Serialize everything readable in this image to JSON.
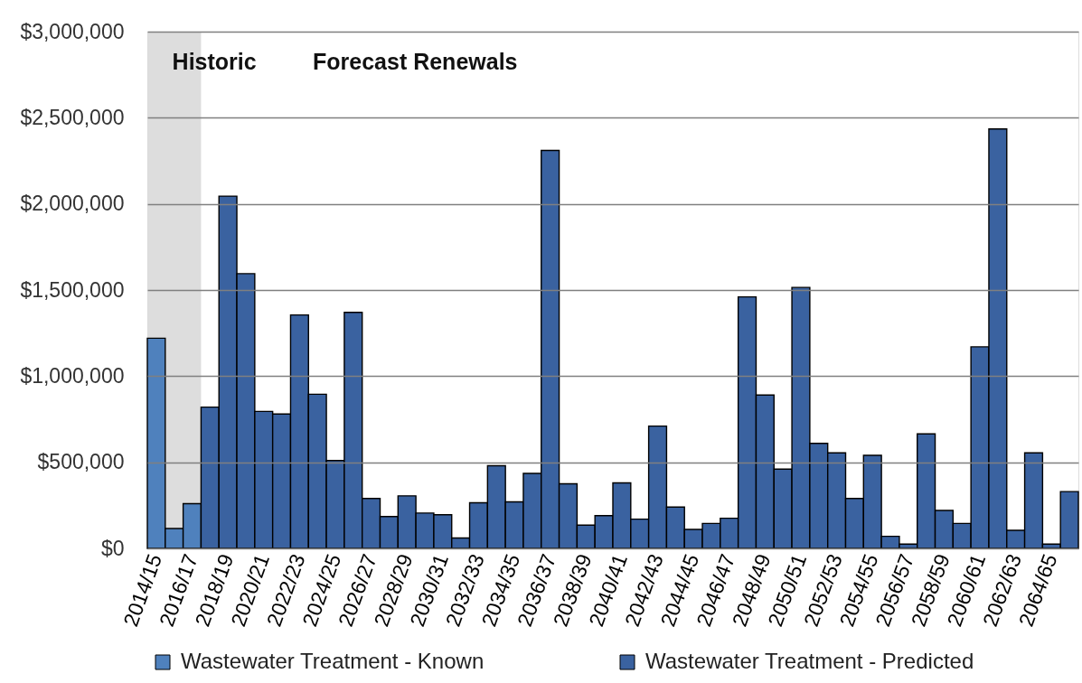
{
  "chart_data": {
    "type": "bar",
    "categories": [
      "2014/15",
      null,
      "2016/17",
      null,
      "2018/19",
      null,
      "2020/21",
      null,
      "2022/23",
      null,
      "2024/25",
      null,
      "2026/27",
      null,
      "2028/29",
      null,
      "2030/31",
      null,
      "2032/33",
      null,
      "2034/35",
      null,
      "2036/37",
      null,
      "2038/39",
      null,
      "2040/41",
      null,
      "2042/43",
      null,
      "2044/45",
      null,
      "2046/47",
      null,
      "2048/49",
      null,
      "2050/51",
      null,
      "2052/53",
      null,
      "2054/55",
      null,
      "2056/57",
      null,
      "2058/59",
      null,
      "2060/61",
      null,
      "2062/63",
      null,
      "2064/65",
      null
    ],
    "series": [
      {
        "name": "Wastewater Treatment - Known",
        "color": "#4f81bd",
        "values": [
          1220000,
          115000,
          260000,
          null,
          null,
          null,
          null,
          null,
          null,
          null,
          null,
          null,
          null,
          null,
          null,
          null,
          null,
          null,
          null,
          null,
          null,
          null,
          null,
          null,
          null,
          null,
          null,
          null,
          null,
          null,
          null,
          null,
          null,
          null,
          null,
          null,
          null,
          null,
          null,
          null,
          null,
          null,
          null,
          null,
          null,
          null,
          null,
          null,
          null,
          null,
          null,
          null
        ]
      },
      {
        "name": "Wastewater Treatment - Predicted",
        "color": "#3a62a0",
        "values": [
          null,
          null,
          null,
          820000,
          2045000,
          1595000,
          795000,
          780000,
          1355000,
          895000,
          510000,
          1370000,
          290000,
          185000,
          305000,
          205000,
          195000,
          60000,
          265000,
          480000,
          270000,
          435000,
          2310000,
          375000,
          135000,
          190000,
          380000,
          170000,
          710000,
          240000,
          110000,
          145000,
          175000,
          1460000,
          890000,
          460000,
          1515000,
          610000,
          555000,
          290000,
          540000,
          70000,
          25000,
          665000,
          220000,
          145000,
          1170000,
          2435000,
          105000,
          555000,
          25000,
          330000
        ]
      }
    ],
    "ylim": [
      0,
      3000000
    ],
    "yticks": [
      {
        "value": 0,
        "label": "$0"
      },
      {
        "value": 500000,
        "label": "$500,000"
      },
      {
        "value": 1000000,
        "label": "$1,000,000"
      },
      {
        "value": 1500000,
        "label": "$1,500,000"
      },
      {
        "value": 2000000,
        "label": "$2,000,000"
      },
      {
        "value": 2500000,
        "label": "$2,500,000"
      },
      {
        "value": 3000000,
        "label": "$3,000,000"
      }
    ],
    "grid": "y",
    "legend": "bottom",
    "bands": [
      {
        "axis": "x",
        "from": "2014/15",
        "to": "2016/17",
        "label": "Historic",
        "color": "#d9d9d9"
      }
    ],
    "annotations": [
      "Forecast Renewals"
    ]
  }
}
